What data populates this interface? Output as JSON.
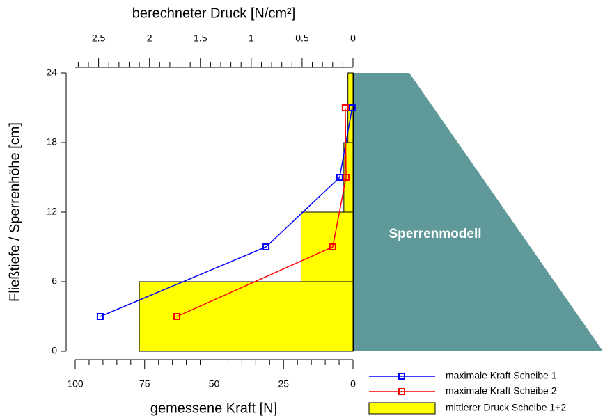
{
  "chart_data": {
    "type": "line",
    "xlabel": "gemessene Kraft [N]",
    "x2label": "berechneter Druck [N/cm²]",
    "ylabel": "Fließtiefe / Sperrenhöhe [cm]",
    "annotation": "Sperrenmodell",
    "xlim": [
      100,
      0
    ],
    "xticks": [
      100,
      75,
      50,
      25,
      0
    ],
    "xminorticks": [
      95,
      90,
      85,
      80,
      70,
      65,
      60,
      55,
      45,
      40,
      35,
      30,
      20,
      15,
      10,
      5
    ],
    "x2lim": [
      2.73,
      0
    ],
    "x2ticks": [
      2.5,
      2,
      1.5,
      1,
      0.5,
      0
    ],
    "x2minorticks": [
      2.7,
      2.6,
      2.4,
      2.3,
      2.2,
      2.1,
      1.9,
      1.8,
      1.7,
      1.6,
      1.4,
      1.3,
      1.2,
      1.1,
      0.9,
      0.8,
      0.7,
      0.6,
      0.4,
      0.3,
      0.2,
      0.1
    ],
    "ylim": [
      0,
      24
    ],
    "yticks": [
      0,
      6,
      12,
      18,
      24
    ],
    "y": [
      3,
      9,
      15,
      21
    ],
    "series": [
      {
        "name": "maximale Kraft Scheibe 1",
        "color": "#0000ff",
        "x": [
          91,
          31.3,
          4.8,
          0.3
        ]
      },
      {
        "name": "maximale Kraft Scheibe 2",
        "color": "#ff0000",
        "x": [
          63.4,
          7.3,
          2.5,
          2.8
        ]
      }
    ],
    "bars": {
      "name": "mittlerer Druck Scheibe 1+2",
      "color": "#ffff00",
      "axis": "x2",
      "bins": [
        0,
        6,
        12,
        18,
        24
      ],
      "values": [
        2.1,
        0.51,
        0.09,
        0.05
      ]
    },
    "legend": "lower right"
  }
}
